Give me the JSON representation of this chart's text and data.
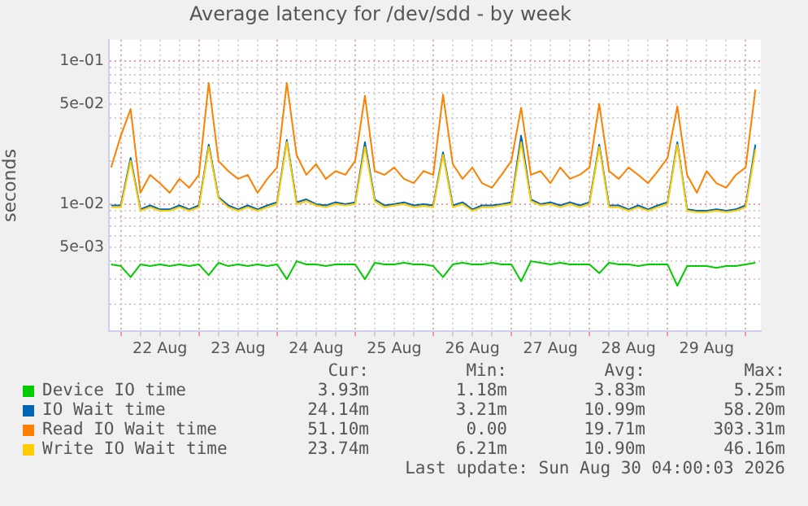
{
  "chart_data": {
    "type": "line",
    "title": "Average latency for /dev/sdd - by week",
    "ylabel": "seconds",
    "log": "y",
    "grid": true,
    "legend": "bottom",
    "marker": "none",
    "line_style": "solid",
    "x": [
      "2026-08-21T21:00",
      "2026-08-22T00:00",
      "2026-08-22T03:00",
      "2026-08-22T06:00",
      "2026-08-22T09:00",
      "2026-08-22T12:00",
      "2026-08-22T15:00",
      "2026-08-22T18:00",
      "2026-08-22T21:00",
      "2026-08-23T00:00",
      "2026-08-23T03:00",
      "2026-08-23T06:00",
      "2026-08-23T09:00",
      "2026-08-23T12:00",
      "2026-08-23T15:00",
      "2026-08-23T18:00",
      "2026-08-23T21:00",
      "2026-08-24T00:00",
      "2026-08-24T03:00",
      "2026-08-24T06:00",
      "2026-08-24T09:00",
      "2026-08-24T12:00",
      "2026-08-24T15:00",
      "2026-08-24T18:00",
      "2026-08-24T21:00",
      "2026-08-25T00:00",
      "2026-08-25T03:00",
      "2026-08-25T06:00",
      "2026-08-25T09:00",
      "2026-08-25T12:00",
      "2026-08-25T15:00",
      "2026-08-25T18:00",
      "2026-08-25T21:00",
      "2026-08-26T00:00",
      "2026-08-26T03:00",
      "2026-08-26T06:00",
      "2026-08-26T09:00",
      "2026-08-26T12:00",
      "2026-08-26T15:00",
      "2026-08-26T18:00",
      "2026-08-26T21:00",
      "2026-08-27T00:00",
      "2026-08-27T03:00",
      "2026-08-27T06:00",
      "2026-08-27T09:00",
      "2026-08-27T12:00",
      "2026-08-27T15:00",
      "2026-08-27T18:00",
      "2026-08-27T21:00",
      "2026-08-28T00:00",
      "2026-08-28T03:00",
      "2026-08-28T06:00",
      "2026-08-28T09:00",
      "2026-08-28T12:00",
      "2026-08-28T15:00",
      "2026-08-28T18:00",
      "2026-08-28T21:00",
      "2026-08-29T00:00",
      "2026-08-29T03:00",
      "2026-08-29T06:00",
      "2026-08-29T09:00",
      "2026-08-29T12:00",
      "2026-08-29T15:00",
      "2026-08-29T18:00",
      "2026-08-29T21:00",
      "2026-08-30T00:00",
      "2026-08-30T03:00"
    ],
    "series": [
      {
        "name": "Device IO time",
        "color": "#00cc00",
        "values": [
          0.0038,
          0.0037,
          0.0031,
          0.0038,
          0.0037,
          0.0038,
          0.0037,
          0.0038,
          0.0037,
          0.0038,
          0.0032,
          0.0039,
          0.0037,
          0.0038,
          0.0037,
          0.0038,
          0.0037,
          0.0038,
          0.003,
          0.004,
          0.0038,
          0.0038,
          0.0037,
          0.0038,
          0.0038,
          0.0038,
          0.003,
          0.0039,
          0.0038,
          0.0038,
          0.0039,
          0.0038,
          0.0038,
          0.0037,
          0.0031,
          0.0038,
          0.0039,
          0.0038,
          0.0038,
          0.0039,
          0.0038,
          0.0038,
          0.0029,
          0.004,
          0.0039,
          0.0038,
          0.0039,
          0.0038,
          0.0038,
          0.0038,
          0.0033,
          0.0039,
          0.0038,
          0.0038,
          0.0037,
          0.0038,
          0.0038,
          0.0038,
          0.0027,
          0.0037,
          0.0037,
          0.0037,
          0.0036,
          0.0037,
          0.0037,
          0.0038,
          0.0039
        ]
      },
      {
        "name": "IO Wait time",
        "color": "#0066b3",
        "values": [
          0.0098,
          0.0098,
          0.021,
          0.0092,
          0.0098,
          0.0092,
          0.0092,
          0.0098,
          0.0092,
          0.0098,
          0.026,
          0.0112,
          0.0098,
          0.0092,
          0.0098,
          0.0092,
          0.0098,
          0.0103,
          0.028,
          0.0103,
          0.0108,
          0.01,
          0.0098,
          0.0103,
          0.01,
          0.0103,
          0.027,
          0.0108,
          0.0098,
          0.01,
          0.0103,
          0.0098,
          0.01,
          0.0098,
          0.023,
          0.0098,
          0.0103,
          0.0092,
          0.0098,
          0.0098,
          0.01,
          0.0103,
          0.03,
          0.0108,
          0.01,
          0.0103,
          0.0098,
          0.0103,
          0.0098,
          0.0103,
          0.026,
          0.0098,
          0.0098,
          0.0092,
          0.0098,
          0.0092,
          0.0098,
          0.0103,
          0.027,
          0.0092,
          0.009,
          0.009,
          0.0092,
          0.009,
          0.0092,
          0.0098,
          0.026
        ]
      },
      {
        "name": "Read IO Wait time",
        "color": "#ff8000",
        "values": [
          0.018,
          0.03,
          0.046,
          0.012,
          0.016,
          0.014,
          0.012,
          0.015,
          0.013,
          0.016,
          0.07,
          0.02,
          0.017,
          0.015,
          0.016,
          0.012,
          0.015,
          0.018,
          0.07,
          0.022,
          0.016,
          0.019,
          0.015,
          0.017,
          0.016,
          0.02,
          0.057,
          0.017,
          0.016,
          0.018,
          0.015,
          0.014,
          0.017,
          0.016,
          0.058,
          0.019,
          0.015,
          0.018,
          0.014,
          0.013,
          0.016,
          0.02,
          0.047,
          0.016,
          0.017,
          0.014,
          0.018,
          0.015,
          0.016,
          0.018,
          0.05,
          0.017,
          0.015,
          0.018,
          0.016,
          0.014,
          0.017,
          0.021,
          0.048,
          0.016,
          0.012,
          0.017,
          0.014,
          0.013,
          0.016,
          0.018,
          0.063
        ]
      },
      {
        "name": "Write IO Wait time",
        "color": "#ffcc00",
        "values": [
          0.0095,
          0.0095,
          0.02,
          0.009,
          0.0095,
          0.009,
          0.009,
          0.0095,
          0.009,
          0.0095,
          0.025,
          0.011,
          0.0095,
          0.009,
          0.0095,
          0.009,
          0.0095,
          0.01,
          0.027,
          0.01,
          0.0105,
          0.0098,
          0.0095,
          0.01,
          0.0098,
          0.01,
          0.025,
          0.0105,
          0.0095,
          0.0098,
          0.01,
          0.0095,
          0.0097,
          0.0095,
          0.022,
          0.0095,
          0.01,
          0.009,
          0.0095,
          0.0095,
          0.0098,
          0.01,
          0.027,
          0.0105,
          0.0098,
          0.01,
          0.0095,
          0.01,
          0.0095,
          0.01,
          0.025,
          0.0095,
          0.0095,
          0.009,
          0.0095,
          0.009,
          0.0095,
          0.01,
          0.026,
          0.009,
          0.0088,
          0.0088,
          0.009,
          0.0088,
          0.009,
          0.0095,
          0.024
        ]
      }
    ],
    "xlim": [
      "2026-08-21T20:20",
      "2026-08-30T04:40"
    ],
    "xticks": [
      {
        "value": "2026-08-22T00:00",
        "label": null
      },
      {
        "value": "2026-08-22T06:00",
        "label": null
      },
      {
        "value": "2026-08-22T12:00",
        "label": "22 Aug"
      },
      {
        "value": "2026-08-22T18:00",
        "label": null
      },
      {
        "value": "2026-08-23T00:00",
        "label": null
      },
      {
        "value": "2026-08-23T06:00",
        "label": null
      },
      {
        "value": "2026-08-23T12:00",
        "label": "23 Aug"
      },
      {
        "value": "2026-08-23T18:00",
        "label": null
      },
      {
        "value": "2026-08-24T00:00",
        "label": null
      },
      {
        "value": "2026-08-24T06:00",
        "label": null
      },
      {
        "value": "2026-08-24T12:00",
        "label": "24 Aug"
      },
      {
        "value": "2026-08-24T18:00",
        "label": null
      },
      {
        "value": "2026-08-25T00:00",
        "label": null
      },
      {
        "value": "2026-08-25T06:00",
        "label": null
      },
      {
        "value": "2026-08-25T12:00",
        "label": "25 Aug"
      },
      {
        "value": "2026-08-25T18:00",
        "label": null
      },
      {
        "value": "2026-08-26T00:00",
        "label": null
      },
      {
        "value": "2026-08-26T06:00",
        "label": null
      },
      {
        "value": "2026-08-26T12:00",
        "label": "26 Aug"
      },
      {
        "value": "2026-08-26T18:00",
        "label": null
      },
      {
        "value": "2026-08-27T00:00",
        "label": null
      },
      {
        "value": "2026-08-27T06:00",
        "label": null
      },
      {
        "value": "2026-08-27T12:00",
        "label": "27 Aug"
      },
      {
        "value": "2026-08-27T18:00",
        "label": null
      },
      {
        "value": "2026-08-28T00:00",
        "label": null
      },
      {
        "value": "2026-08-28T06:00",
        "label": null
      },
      {
        "value": "2026-08-28T12:00",
        "label": "28 Aug"
      },
      {
        "value": "2026-08-28T18:00",
        "label": null
      },
      {
        "value": "2026-08-29T00:00",
        "label": null
      },
      {
        "value": "2026-08-29T06:00",
        "label": null
      },
      {
        "value": "2026-08-29T12:00",
        "label": "29 Aug"
      },
      {
        "value": "2026-08-29T18:00",
        "label": null
      },
      {
        "value": "2026-08-30T00:00",
        "label": null
      }
    ],
    "ylim": [
      0.0013,
      0.14
    ],
    "yticks": [
      {
        "value": 0.002,
        "label": null
      },
      {
        "value": 0.003,
        "label": null
      },
      {
        "value": 0.004,
        "label": null
      },
      {
        "value": 0.005,
        "label": "5e-03"
      },
      {
        "value": 0.006,
        "label": null
      },
      {
        "value": 0.007,
        "label": null
      },
      {
        "value": 0.008,
        "label": null
      },
      {
        "value": 0.009,
        "label": null
      },
      {
        "value": 0.01,
        "label": "1e-02"
      },
      {
        "value": 0.02,
        "label": null
      },
      {
        "value": 0.03,
        "label": null
      },
      {
        "value": 0.04,
        "label": null
      },
      {
        "value": 0.05,
        "label": "5e-02"
      },
      {
        "value": 0.06,
        "label": null
      },
      {
        "value": 0.07,
        "label": null
      },
      {
        "value": 0.08,
        "label": null
      },
      {
        "value": 0.09,
        "label": null
      },
      {
        "value": 0.1,
        "label": "1e-01"
      }
    ],
    "annotations": [
      "Cur:",
      "Min:",
      "Avg:",
      "Max:",
      "3.93m",
      "1.18m",
      "3.83m",
      "5.25m",
      "24.14m",
      "3.21m",
      "10.99m",
      "58.20m",
      "51.10m",
      "0.00",
      "19.71m",
      "303.31m",
      "23.74m",
      "6.21m",
      "10.90m",
      "46.16m",
      "Last update: Sun Aug 30 04:00:03 2026"
    ]
  }
}
